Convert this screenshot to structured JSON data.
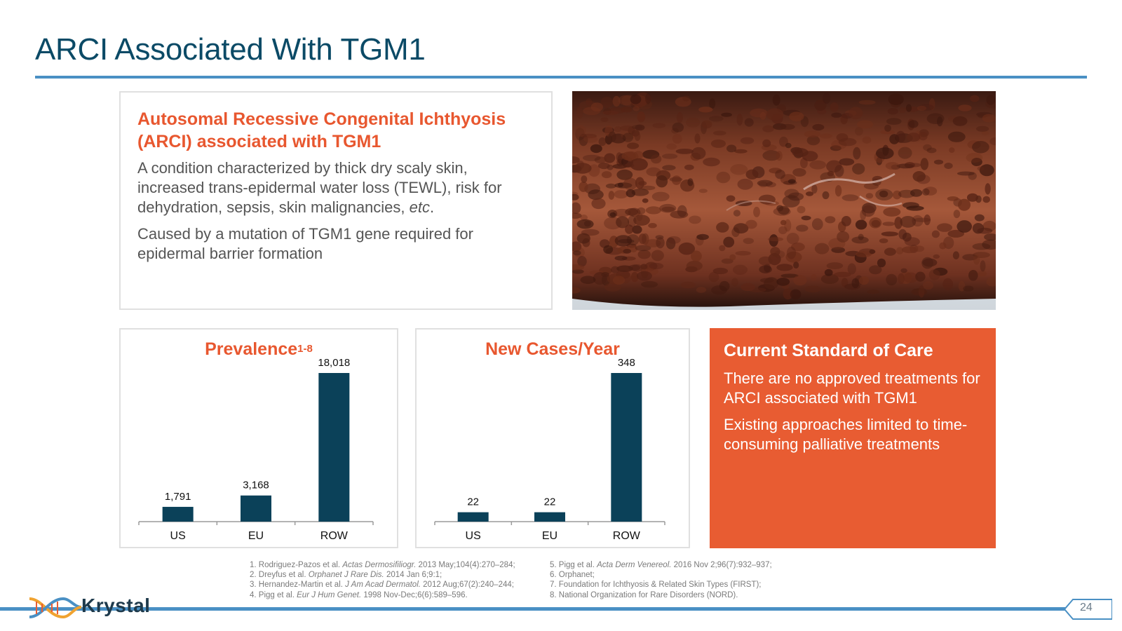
{
  "slide": {
    "title": "ARCI Associated With TGM1",
    "page_number": "24"
  },
  "description": {
    "heading": "Autosomal Recessive Congenital Ichthyosis (ARCI) associated with TGM1",
    "paragraph1_main": "A condition characterized by thick dry scaly skin, increased trans-epidermal water loss (TEWL), risk for dehydration, sepsis, skin malignancies, ",
    "paragraph1_italic": "etc",
    "paragraph1_end": ".",
    "paragraph2": "Caused by a mutation of TGM1 gene required for epidermal barrier formation"
  },
  "photo": {
    "subject": "scaly-skin-photo"
  },
  "prevalence": {
    "title": "Prevalence",
    "superscript": "1-8"
  },
  "new_cases": {
    "title": "New Cases/Year"
  },
  "chart_data": [
    {
      "type": "bar",
      "title": "Prevalence",
      "categories": [
        "US",
        "EU",
        "ROW"
      ],
      "values": [
        1791,
        3168,
        18018
      ],
      "value_labels": [
        "1,791",
        "3,168",
        "18,018"
      ],
      "bar_color": "#0b4159"
    },
    {
      "type": "bar",
      "title": "New Cases/Year",
      "categories": [
        "US",
        "EU",
        "ROW"
      ],
      "values": [
        22,
        22,
        348
      ],
      "value_labels": [
        "22",
        "22",
        "348"
      ],
      "bar_color": "#0b4159"
    }
  ],
  "standard_of_care": {
    "title": "Current Standard of Care",
    "paragraph1": "There are no approved treatments for ARCI associated with TGM1",
    "paragraph2": "Existing approaches limited to time-consuming palliative treatments"
  },
  "references_left": [
    {
      "pre": "1. Rodriguez-Pazos et al. ",
      "journal": "Actas Dermosifiliogr.",
      "post": " 2013 May;104(4):270–284;"
    },
    {
      "pre": "2. Dreyfus et al. ",
      "journal": "Orphanet J Rare Dis.",
      "post": " 2014 Jan 6;9:1;"
    },
    {
      "pre": "3. Hernandez-Martin et al. ",
      "journal": "J Am Acad Dermatol.",
      "post": " 2012 Aug;67(2):240–244;"
    },
    {
      "pre": "4. Pigg et al. ",
      "journal": "Eur J Hum Genet.",
      "post": " 1998 Nov-Dec;6(6):589–596."
    }
  ],
  "references_right": [
    {
      "pre": "5. Pigg et al. ",
      "journal": "Acta Derm Venereol.",
      "post": " 2016 Nov 2;96(7):932–937;"
    },
    {
      "pre": "6. Orphanet;",
      "journal": "",
      "post": ""
    },
    {
      "pre": "7. Foundation for Ichthyosis & Related Skin Types (FIRST);",
      "journal": "",
      "post": ""
    },
    {
      "pre": "8. National Organization for Rare Disorders (NORD).",
      "journal": "",
      "post": ""
    }
  ],
  "brand": {
    "name": "Krystal",
    "accent_orange": "#e8572f",
    "title_blue": "#0b4a66",
    "rule_blue": "#4a90c4"
  }
}
